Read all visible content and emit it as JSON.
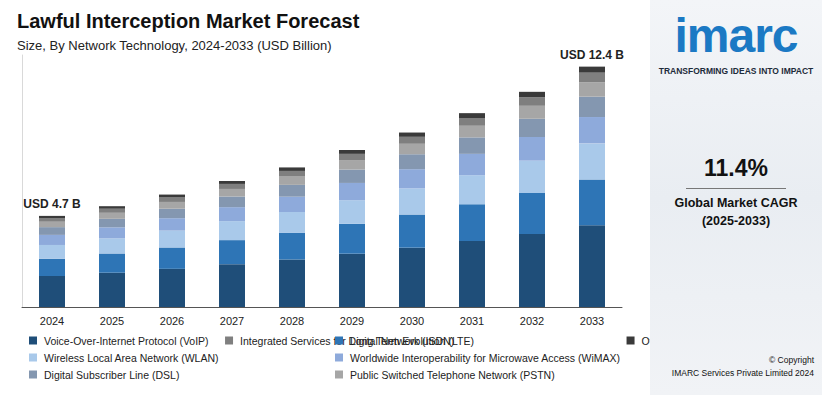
{
  "chart_data": {
    "type": "bar",
    "title": "Lawful Interception Market Forecast",
    "subtitle": "Size, By Network Technology, 2024-2033 (USD Billion)",
    "categories": [
      "2024",
      "2025",
      "2026",
      "2027",
      "2028",
      "2029",
      "2030",
      "2031",
      "2032",
      "2033"
    ],
    "series": [
      {
        "name": "Voice-Over-Internet Protocol (VoIP)",
        "color": "#1f4e79",
        "values": [
          1.6,
          1.77,
          1.97,
          2.21,
          2.45,
          2.75,
          3.06,
          3.4,
          3.77,
          4.22
        ]
      },
      {
        "name": "Long Term Evolution (LTE)",
        "color": "#2e75b6",
        "values": [
          0.89,
          0.99,
          1.1,
          1.24,
          1.37,
          1.54,
          1.71,
          1.9,
          2.11,
          2.36
        ]
      },
      {
        "name": "Wireless Local Area Network (WLAN)",
        "color": "#a9c9ea",
        "values": [
          0.71,
          0.78,
          0.87,
          0.98,
          1.08,
          1.22,
          1.35,
          1.5,
          1.67,
          1.86
        ]
      },
      {
        "name": "Worldwide Interoperability for Microwave Access (WiMAX)",
        "color": "#8eaadb",
        "values": [
          0.52,
          0.57,
          0.64,
          0.72,
          0.79,
          0.89,
          0.99,
          1.1,
          1.22,
          1.36
        ]
      },
      {
        "name": "Digital Subscriber Line (DSL)",
        "color": "#8497b0",
        "values": [
          0.4,
          0.44,
          0.49,
          0.55,
          0.61,
          0.69,
          0.77,
          0.85,
          0.94,
          1.05
        ]
      },
      {
        "name": "Public Switched Telephone Network (PSTN)",
        "color": "#a6a6a6",
        "values": [
          0.28,
          0.31,
          0.35,
          0.39,
          0.43,
          0.49,
          0.54,
          0.6,
          0.67,
          0.74
        ]
      },
      {
        "name": "Integrated Services for Digital Network (ISDN)",
        "color": "#7f7f7f",
        "values": [
          0.19,
          0.21,
          0.23,
          0.26,
          0.29,
          0.32,
          0.36,
          0.4,
          0.44,
          0.5
        ]
      },
      {
        "name": "Others",
        "color": "#3a3a3a",
        "values": [
          0.11,
          0.13,
          0.15,
          0.15,
          0.18,
          0.2,
          0.22,
          0.25,
          0.28,
          0.31
        ]
      }
    ],
    "annotations": [
      {
        "category": "2024",
        "text": "USD 4.7 B"
      },
      {
        "category": "2033",
        "text": "USD 12.4 B"
      }
    ],
    "ylim": [
      0,
      13
    ],
    "stacked": true,
    "grid": false,
    "tick_labels": "x",
    "legend": "bottom"
  },
  "panel": {
    "logo": "imarc",
    "tagline": "TRANSFORMING IDEAS INTO IMPACT",
    "cagr": "11.4%",
    "cagr_label": [
      "Global Market CAGR",
      "(2025-2033)"
    ],
    "copyright": [
      "© Copyright",
      "IMARC Services Private Limited 2024"
    ]
  }
}
